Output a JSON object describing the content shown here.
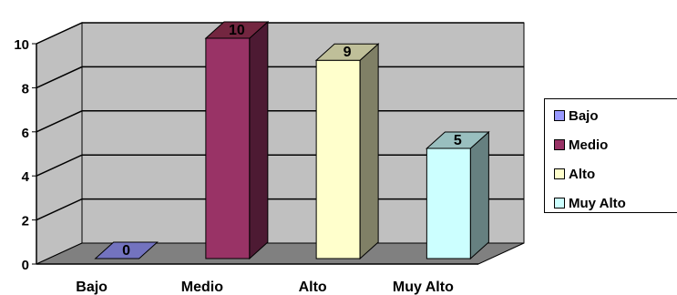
{
  "chart_data": {
    "type": "bar",
    "categories": [
      "Bajo",
      "Medio",
      "Alto",
      "Muy Alto"
    ],
    "values": [
      0,
      10,
      9,
      5
    ],
    "yticks": [
      "0",
      "2",
      "4",
      "6",
      "8",
      "10"
    ],
    "ylim": [
      0,
      10
    ],
    "grid": true,
    "style": "3d",
    "legend_position": "right",
    "colors": {
      "wall": "#c0c0c0",
      "floor": "#808080",
      "bars": [
        "#9999ff",
        "#993366",
        "#ffffcc",
        "#ccffff"
      ],
      "bar_sides": [
        "#4d4d80",
        "#4d1a33",
        "#808066",
        "#668080"
      ],
      "bar_tops": [
        "#7373bf",
        "#732640",
        "#bfbf99",
        "#99bfbf"
      ]
    }
  },
  "legend": {
    "items": [
      "Bajo",
      "Medio",
      "Alto",
      "Muy Alto"
    ]
  }
}
